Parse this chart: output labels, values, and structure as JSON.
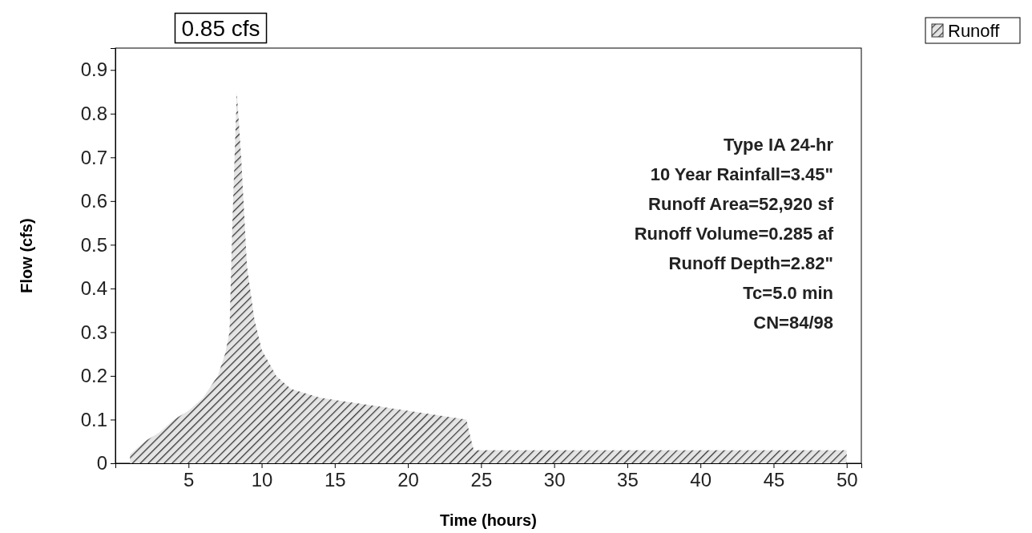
{
  "chart_data": {
    "type": "area",
    "xlabel": "Time  (hours)",
    "ylabel": "Flow  (cfs)",
    "x": [
      1,
      2,
      3,
      4,
      5,
      6,
      7,
      7.5,
      7.8,
      8,
      8.3,
      8.6,
      9,
      9.5,
      10,
      11,
      12,
      14,
      16,
      18,
      20,
      22,
      24,
      24.2,
      24.5,
      26,
      30,
      35,
      40,
      45,
      50
    ],
    "series": [
      {
        "name": "Runoff",
        "color": "#333333",
        "values": [
          0.02,
          0.05,
          0.07,
          0.1,
          0.12,
          0.15,
          0.2,
          0.25,
          0.3,
          0.55,
          0.85,
          0.7,
          0.45,
          0.33,
          0.26,
          0.2,
          0.17,
          0.15,
          0.14,
          0.13,
          0.12,
          0.11,
          0.1,
          0.07,
          0.03,
          0.03,
          0.03,
          0.03,
          0.03,
          0.03,
          0.03
        ]
      }
    ],
    "xlim": [
      0,
      51
    ],
    "xticks": [
      5,
      10,
      15,
      20,
      25,
      30,
      35,
      40,
      45,
      50
    ],
    "ylim": [
      0,
      0.95
    ],
    "yticks": [
      0,
      0.1,
      0.2,
      0.3,
      0.4,
      0.5,
      0.6,
      0.7,
      0.8,
      0.9
    ],
    "legend": "top right",
    "marker": "none",
    "annotations": [
      {
        "text": "0.85 cfs",
        "x": 8.3,
        "y": 0.85
      },
      "Type IA 24-hr",
      "10 Year Rainfall=3.45\"",
      "Runoff Area=52,920 sf",
      "Runoff Volume=0.285 af",
      "Runoff Depth=2.82\"",
      "Tc=5.0 min",
      "CN=84/98"
    ]
  }
}
